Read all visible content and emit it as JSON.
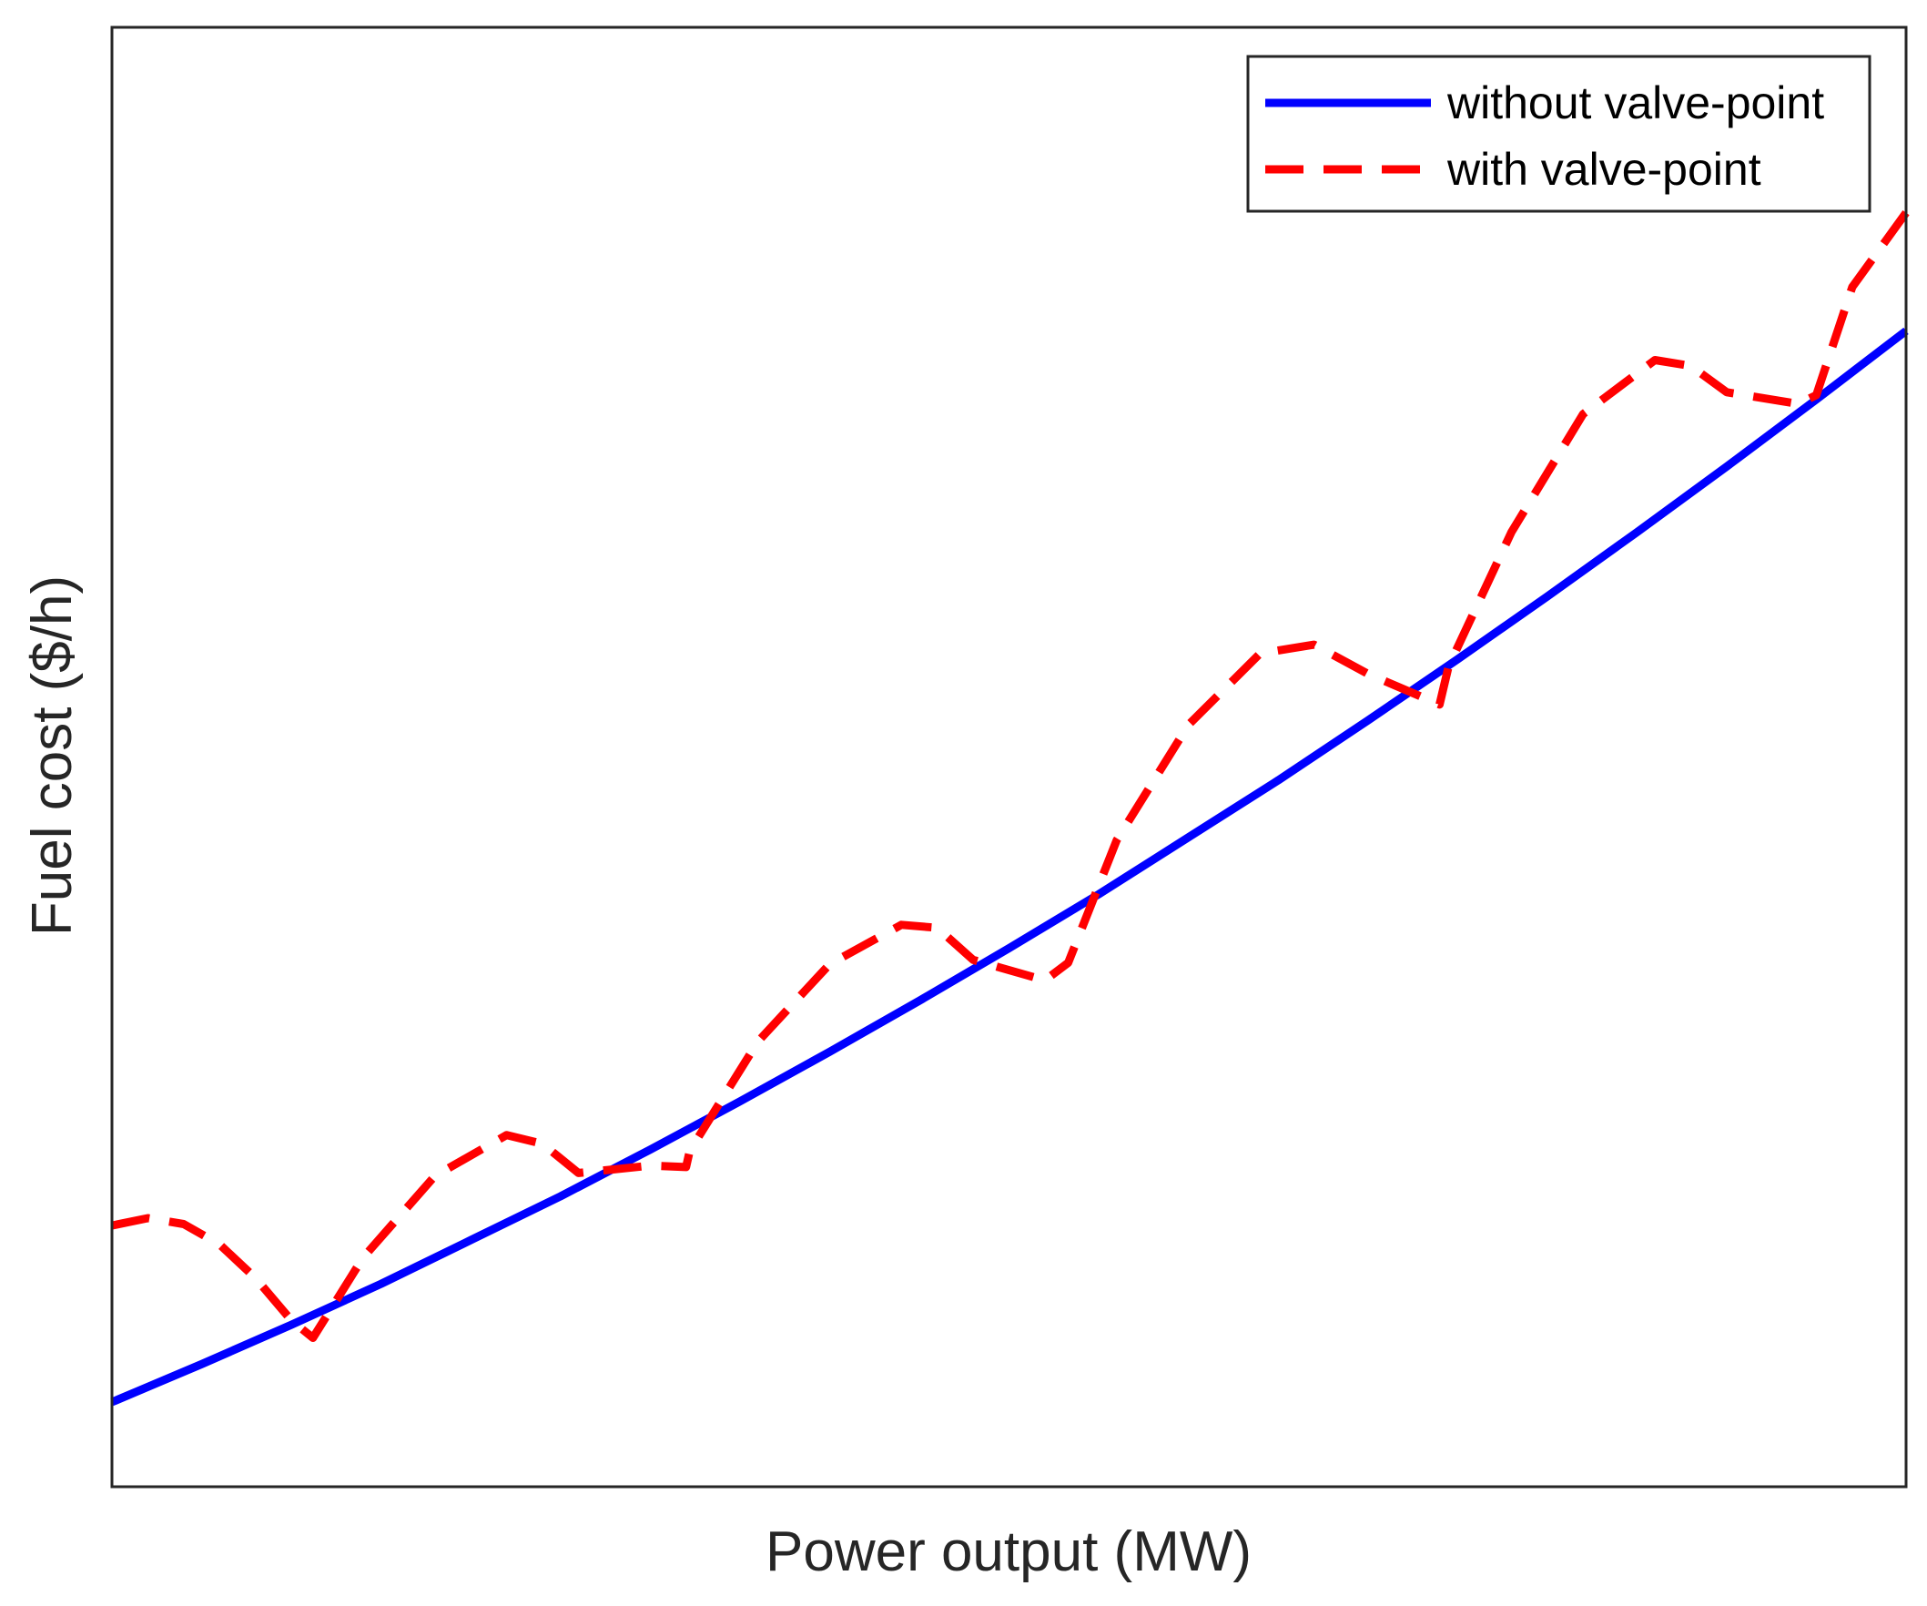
{
  "chart_data": {
    "type": "line",
    "title": "",
    "xlabel": "Power output (MW)",
    "ylabel": "Fuel cost ($/h)",
    "xlim": [
      0,
      1
    ],
    "ylim": [
      0,
      1
    ],
    "grid": false,
    "ticks_visible": false,
    "legend_position": "top-right",
    "series": [
      {
        "name": "without valve-point",
        "color": "#0000FF",
        "style": "solid",
        "x": [
          0.0,
          0.05,
          0.1,
          0.15,
          0.2,
          0.25,
          0.3,
          0.35,
          0.4,
          0.45,
          0.5,
          0.55,
          0.6,
          0.65,
          0.7,
          0.75,
          0.8,
          0.85,
          0.9,
          0.95,
          1.0
        ],
        "y": [
          0.058,
          0.084,
          0.111,
          0.139,
          0.169,
          0.199,
          0.231,
          0.264,
          0.298,
          0.333,
          0.369,
          0.406,
          0.445,
          0.484,
          0.525,
          0.567,
          0.61,
          0.654,
          0.699,
          0.745,
          0.792
        ]
      },
      {
        "name": "with valve-point",
        "color": "#FF0000",
        "style": "dashed",
        "x": [
          0.0,
          0.02,
          0.04,
          0.06,
          0.08,
          0.1,
          0.112,
          0.14,
          0.18,
          0.22,
          0.24,
          0.26,
          0.3,
          0.32,
          0.322,
          0.36,
          0.4,
          0.44,
          0.46,
          0.48,
          0.52,
          0.533,
          0.56,
          0.6,
          0.64,
          0.67,
          0.7,
          0.74,
          0.745,
          0.78,
          0.82,
          0.86,
          0.88,
          0.9,
          0.94,
          0.95,
          0.97,
          1.0
        ],
        "y": [
          0.179,
          0.184,
          0.18,
          0.166,
          0.143,
          0.114,
          0.102,
          0.157,
          0.213,
          0.241,
          0.235,
          0.215,
          0.22,
          0.219,
          0.23,
          0.305,
          0.358,
          0.385,
          0.383,
          0.361,
          0.347,
          0.359,
          0.443,
          0.522,
          0.571,
          0.577,
          0.557,
          0.536,
          0.562,
          0.654,
          0.735,
          0.772,
          0.768,
          0.75,
          0.742,
          0.748,
          0.822,
          0.873
        ]
      }
    ]
  }
}
